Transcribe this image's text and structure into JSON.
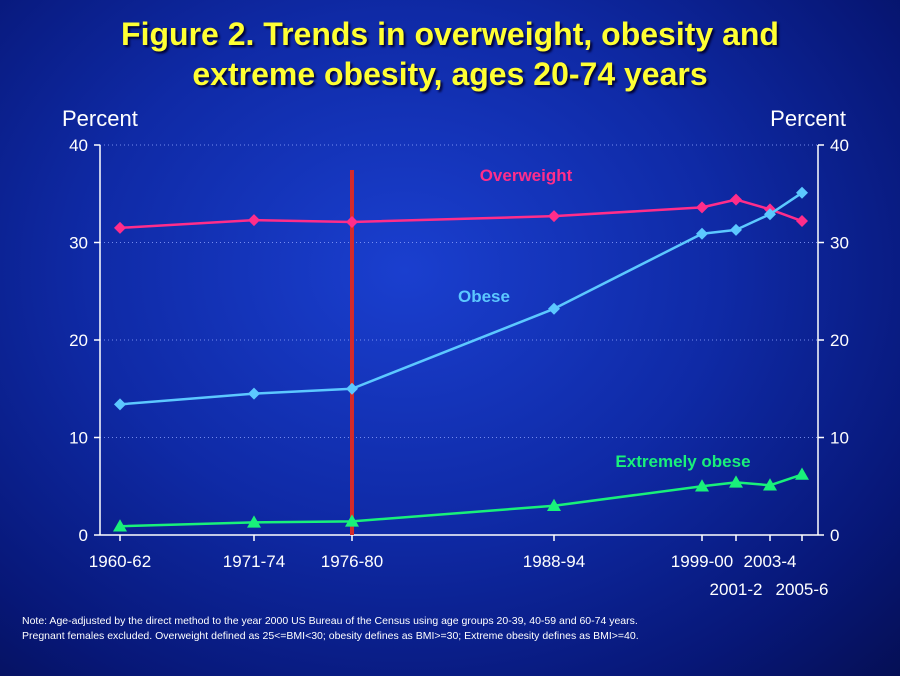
{
  "title": {
    "line1": "Figure 2. Trends in overweight, obesity and",
    "line2": "extreme obesity, ages 20-74 years"
  },
  "note": {
    "line1": "Note: Age-adjusted by the direct method to the year 2000 US Bureau of the Census using age groups 20-39, 40-59 and 60-74 years.",
    "line2": "Pregnant females excluded. Overweight defined as 25<=BMI<30; obesity defines as BMI>=30; Extreme obesity defines as BMI>=40."
  },
  "colors": {
    "overweight": "#ff2d8a",
    "obese": "#5cc8ff",
    "extremely_obese": "#19f07a",
    "divider": "#d42a2a",
    "axis": "#ffffff",
    "grid": "#8ea3ff"
  },
  "chart_data": {
    "type": "line",
    "title": "Figure 2. Trends in overweight, obesity and extreme obesity, ages 20-74 years",
    "ylabel_left": "Percent",
    "ylabel_right": "Percent",
    "ylim": [
      0,
      40
    ],
    "yticks": [
      0,
      10,
      20,
      30,
      40
    ],
    "grid": true,
    "categories": [
      "1960-62",
      "1971-74",
      "1976-80",
      "1988-94",
      "1999-00",
      "2001-2",
      "2003-4",
      "2005-6"
    ],
    "x_label_rows": [
      1,
      1,
      1,
      1,
      1,
      2,
      1,
      2
    ],
    "series": [
      {
        "name": "Overweight",
        "color": "#ff2d8a",
        "marker": "diamond",
        "values": [
          31.5,
          32.3,
          32.1,
          32.7,
          33.6,
          34.4,
          33.4,
          32.2
        ]
      },
      {
        "name": "Obese",
        "color": "#5cc8ff",
        "marker": "diamond",
        "values": [
          13.4,
          14.5,
          15.0,
          23.2,
          30.9,
          31.3,
          32.9,
          35.1
        ]
      },
      {
        "name": "Extremely obese",
        "color": "#19f07a",
        "marker": "triangle",
        "values": [
          0.9,
          1.3,
          1.4,
          3.0,
          5.0,
          5.4,
          5.1,
          6.2
        ]
      }
    ],
    "vertical_marker_at": "1976-80"
  }
}
